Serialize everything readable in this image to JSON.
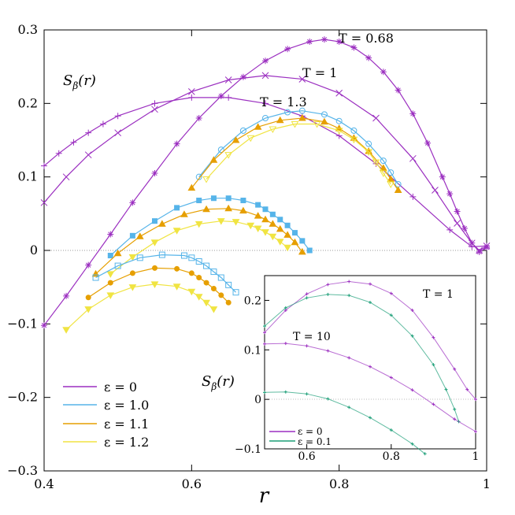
{
  "chart_data": {
    "type": "line",
    "xlabel": "r",
    "ylabel": "S_β(r)",
    "ylabel_main": "S",
    "ylabel_sub": "β",
    "ylabel_arg": "(r)",
    "xlim": [
      0.4,
      1.0
    ],
    "ylim": [
      -0.3,
      0.3
    ],
    "x_ticks": [
      0.4,
      0.6,
      0.8,
      1.0
    ],
    "x_tick_labels": [
      "0.4",
      "0.6",
      "0.8",
      "1"
    ],
    "y_ticks": [
      -0.3,
      -0.2,
      -0.1,
      0,
      0.1,
      0.2,
      0.3
    ],
    "y_tick_labels": [
      "−0.3",
      "−0.2",
      "−0.1",
      "0",
      "0.1",
      "0.2",
      "0.3"
    ],
    "annotations": [
      "T = 0.68",
      "T = 1",
      "T = 1.3"
    ],
    "legend": [
      {
        "label": "ε = 0",
        "color": "#9b2fc0"
      },
      {
        "label": "ε = 1.0",
        "color": "#56b4e9"
      },
      {
        "label": "ε = 1.1",
        "color": "#e69f00"
      },
      {
        "label": "ε = 1.2",
        "color": "#f0e442"
      }
    ],
    "series": [
      {
        "name": "eps0_T0.68",
        "color": "#9b2fc0",
        "marker": "star",
        "x": [
          0.4,
          0.43,
          0.46,
          0.49,
          0.52,
          0.55,
          0.58,
          0.61,
          0.64,
          0.67,
          0.7,
          0.73,
          0.76,
          0.78,
          0.8,
          0.82,
          0.84,
          0.86,
          0.88,
          0.9,
          0.92,
          0.94,
          0.95,
          0.96,
          0.97,
          0.98,
          0.99,
          1.0
        ],
        "y": [
          -0.102,
          -0.062,
          -0.02,
          0.022,
          0.065,
          0.105,
          0.145,
          0.18,
          0.21,
          0.236,
          0.258,
          0.274,
          0.284,
          0.287,
          0.284,
          0.276,
          0.262,
          0.243,
          0.218,
          0.186,
          0.146,
          0.1,
          0.077,
          0.053,
          0.03,
          0.01,
          -0.002,
          0.004
        ]
      },
      {
        "name": "eps0_T1",
        "color": "#9b2fc0",
        "marker": "cross",
        "x": [
          0.4,
          0.43,
          0.46,
          0.5,
          0.55,
          0.6,
          0.65,
          0.7,
          0.75,
          0.8,
          0.85,
          0.9,
          0.93,
          0.96,
          0.98,
          0.99,
          1.0
        ],
        "y": [
          0.065,
          0.1,
          0.13,
          0.16,
          0.192,
          0.216,
          0.232,
          0.238,
          0.233,
          0.214,
          0.18,
          0.125,
          0.082,
          0.037,
          0.01,
          0.0,
          0.006
        ]
      },
      {
        "name": "eps0_T1.3",
        "color": "#9b2fc0",
        "marker": "plus",
        "x": [
          0.4,
          0.42,
          0.44,
          0.46,
          0.48,
          0.5,
          0.55,
          0.6,
          0.65,
          0.7,
          0.75,
          0.8,
          0.85,
          0.9,
          0.95,
          0.98,
          1.0
        ],
        "y": [
          0.115,
          0.132,
          0.147,
          0.16,
          0.172,
          0.183,
          0.2,
          0.208,
          0.208,
          0.2,
          0.183,
          0.156,
          0.118,
          0.073,
          0.028,
          0.005,
          0.006
        ]
      },
      {
        "name": "eps1.0_T1.3",
        "color": "#56b4e9",
        "marker": "circle",
        "x": [
          0.61,
          0.64,
          0.67,
          0.7,
          0.73,
          0.75,
          0.78,
          0.8,
          0.82,
          0.84,
          0.86,
          0.87,
          0.88
        ],
        "y": [
          0.1,
          0.137,
          0.163,
          0.18,
          0.188,
          0.19,
          0.185,
          0.176,
          0.163,
          0.145,
          0.122,
          0.106,
          0.09
        ]
      },
      {
        "name": "eps1.1_T1.3",
        "color": "#e69f00",
        "marker": "triangle",
        "x": [
          0.6,
          0.63,
          0.66,
          0.69,
          0.72,
          0.75,
          0.78,
          0.8,
          0.82,
          0.84,
          0.86,
          0.87,
          0.88
        ],
        "y": [
          0.085,
          0.123,
          0.15,
          0.168,
          0.177,
          0.18,
          0.175,
          0.166,
          0.153,
          0.135,
          0.112,
          0.097,
          0.082
        ]
      },
      {
        "name": "eps1.2_T1.3",
        "color": "#f0e442",
        "marker": "diamond",
        "x": [
          0.62,
          0.65,
          0.68,
          0.71,
          0.74,
          0.77,
          0.8,
          0.82,
          0.84,
          0.85,
          0.86,
          0.87
        ],
        "y": [
          0.097,
          0.13,
          0.153,
          0.165,
          0.172,
          0.172,
          0.163,
          0.151,
          0.134,
          0.12,
          0.105,
          0.09
        ]
      },
      {
        "name": "eps1.0_T1",
        "color": "#56b4e9",
        "marker": "square",
        "x": [
          0.49,
          0.52,
          0.55,
          0.58,
          0.61,
          0.63,
          0.65,
          0.67,
          0.69,
          0.7,
          0.71,
          0.72,
          0.73,
          0.74,
          0.75,
          0.76
        ],
        "y": [
          -0.007,
          0.02,
          0.04,
          0.058,
          0.068,
          0.071,
          0.071,
          0.068,
          0.062,
          0.056,
          0.049,
          0.042,
          0.034,
          0.024,
          0.013,
          0.0
        ]
      },
      {
        "name": "eps1.1_T1",
        "color": "#e69f00",
        "marker": "triangle",
        "x": [
          0.47,
          0.5,
          0.53,
          0.56,
          0.59,
          0.62,
          0.65,
          0.67,
          0.69,
          0.7,
          0.71,
          0.72,
          0.73,
          0.74,
          0.75
        ],
        "y": [
          -0.032,
          -0.004,
          0.019,
          0.036,
          0.049,
          0.056,
          0.057,
          0.054,
          0.047,
          0.042,
          0.036,
          0.029,
          0.021,
          0.011,
          -0.002
        ]
      },
      {
        "name": "eps1.2_T1",
        "color": "#f0e442",
        "marker": "tridown",
        "x": [
          0.49,
          0.52,
          0.55,
          0.58,
          0.61,
          0.64,
          0.66,
          0.68,
          0.69,
          0.7,
          0.71,
          0.72,
          0.73
        ],
        "y": [
          -0.032,
          -0.009,
          0.011,
          0.027,
          0.036,
          0.04,
          0.039,
          0.034,
          0.03,
          0.025,
          0.019,
          0.012,
          0.004
        ]
      },
      {
        "name": "eps1.0_T0.68",
        "color": "#56b4e9",
        "marker": "square-open",
        "x": [
          0.47,
          0.5,
          0.53,
          0.56,
          0.59,
          0.6,
          0.61,
          0.62,
          0.63,
          0.64,
          0.65,
          0.66
        ],
        "y": [
          -0.037,
          -0.021,
          -0.01,
          -0.006,
          -0.007,
          -0.01,
          -0.015,
          -0.021,
          -0.029,
          -0.037,
          -0.047,
          -0.057
        ]
      },
      {
        "name": "eps1.1_T0.68",
        "color": "#e69f00",
        "marker": "dot",
        "x": [
          0.46,
          0.49,
          0.52,
          0.55,
          0.58,
          0.6,
          0.61,
          0.62,
          0.63,
          0.64,
          0.65
        ],
        "y": [
          -0.064,
          -0.044,
          -0.031,
          -0.024,
          -0.025,
          -0.031,
          -0.037,
          -0.044,
          -0.052,
          -0.061,
          -0.071
        ]
      },
      {
        "name": "eps1.2_T0.68",
        "color": "#f0e442",
        "marker": "tridown",
        "x": [
          0.43,
          0.46,
          0.49,
          0.52,
          0.55,
          0.58,
          0.6,
          0.61,
          0.62,
          0.63
        ],
        "y": [
          -0.108,
          -0.08,
          -0.061,
          -0.05,
          -0.046,
          -0.049,
          -0.056,
          -0.063,
          -0.071,
          -0.08
        ]
      }
    ],
    "inset": {
      "xlim": [
        0.5,
        1.0
      ],
      "ylim": [
        -0.1,
        0.25
      ],
      "x_ticks": [
        0.6,
        0.8,
        1.0
      ],
      "x_tick_labels": [
        "0.6",
        "0.8",
        "1"
      ],
      "y_ticks": [
        -0.1,
        0,
        0.1,
        0.2
      ],
      "y_tick_labels": [
        "−0.1",
        "0",
        "0.1",
        "0.2"
      ],
      "ylabel": "S_β(r)",
      "annotations": [
        "T = 1",
        "T = 10"
      ],
      "legend": [
        {
          "label": "ε = 0",
          "color": "#9b2fc0"
        },
        {
          "label": "ε = 0.1",
          "color": "#1b9e77"
        }
      ],
      "series": [
        {
          "name": "inset_eps0_T1",
          "color": "#9b2fc0",
          "x": [
            0.5,
            0.55,
            0.6,
            0.65,
            0.7,
            0.75,
            0.8,
            0.85,
            0.9,
            0.95,
            0.98,
            1.0
          ],
          "y": [
            0.135,
            0.18,
            0.213,
            0.232,
            0.238,
            0.233,
            0.214,
            0.18,
            0.125,
            0.061,
            0.02,
            0.0
          ]
        },
        {
          "name": "inset_eps0.1_T1",
          "color": "#1b9e77",
          "x": [
            0.5,
            0.55,
            0.6,
            0.65,
            0.7,
            0.75,
            0.8,
            0.85,
            0.9,
            0.93,
            0.95,
            0.96
          ],
          "y": [
            0.148,
            0.185,
            0.205,
            0.212,
            0.21,
            0.196,
            0.17,
            0.128,
            0.07,
            0.02,
            -0.02,
            -0.045
          ]
        },
        {
          "name": "inset_eps0_T10",
          "color": "#9b2fc0",
          "x": [
            0.5,
            0.55,
            0.6,
            0.65,
            0.7,
            0.75,
            0.8,
            0.85,
            0.9,
            0.95,
            1.0
          ],
          "y": [
            0.112,
            0.113,
            0.108,
            0.098,
            0.084,
            0.066,
            0.044,
            0.019,
            -0.01,
            -0.04,
            -0.065
          ]
        },
        {
          "name": "inset_eps0.1_T10",
          "color": "#1b9e77",
          "x": [
            0.5,
            0.55,
            0.6,
            0.65,
            0.7,
            0.75,
            0.8,
            0.85,
            0.88
          ],
          "y": [
            0.014,
            0.015,
            0.011,
            0.001,
            -0.016,
            -0.037,
            -0.062,
            -0.09,
            -0.11
          ]
        }
      ]
    }
  }
}
